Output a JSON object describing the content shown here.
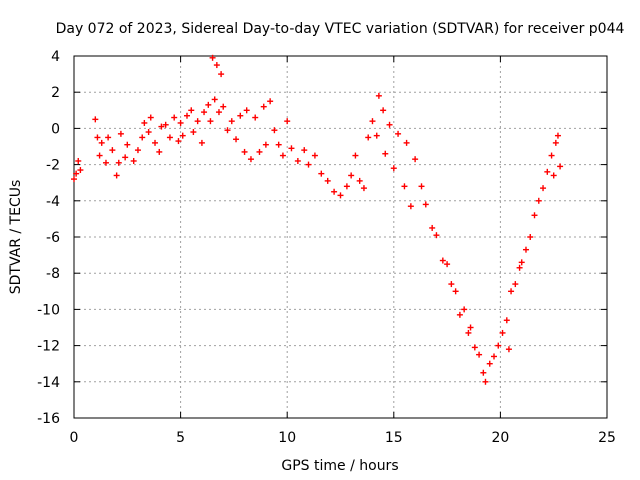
{
  "chart_data": {
    "type": "scatter",
    "title": "Day 072 of 2023, Sidereal Day-to-day VTEC variation (SDTVAR) for receiver p044",
    "xlabel": "GPS time / hours",
    "ylabel": "SDTVAR / TECUs",
    "xlim": [
      0,
      25
    ],
    "ylim": [
      -16,
      4
    ],
    "xticks": [
      "0",
      "5",
      "10",
      "15",
      "20",
      "25"
    ],
    "yticks": [
      "4",
      "2",
      "0",
      "-2",
      "-4",
      "-6",
      "-8",
      "-10",
      "-12",
      "-14",
      "-16"
    ],
    "grid": true,
    "marker": "+",
    "color": "#ff0000",
    "series": [
      {
        "name": "SDTVAR",
        "points": [
          [
            0.0,
            -2.8
          ],
          [
            0.1,
            -2.5
          ],
          [
            0.2,
            -1.8
          ],
          [
            0.3,
            -2.3
          ],
          [
            1.0,
            0.5
          ],
          [
            1.1,
            -0.5
          ],
          [
            1.2,
            -1.5
          ],
          [
            1.3,
            -0.8
          ],
          [
            1.5,
            -1.9
          ],
          [
            1.6,
            -0.5
          ],
          [
            1.8,
            -1.2
          ],
          [
            2.0,
            -2.6
          ],
          [
            2.1,
            -1.9
          ],
          [
            2.2,
            -0.3
          ],
          [
            2.4,
            -1.6
          ],
          [
            2.5,
            -0.9
          ],
          [
            2.8,
            -1.8
          ],
          [
            3.0,
            -1.2
          ],
          [
            3.2,
            -0.5
          ],
          [
            3.3,
            0.3
          ],
          [
            3.5,
            -0.2
          ],
          [
            3.6,
            0.6
          ],
          [
            3.8,
            -0.8
          ],
          [
            4.0,
            -1.3
          ],
          [
            4.1,
            0.1
          ],
          [
            4.3,
            0.2
          ],
          [
            4.5,
            -0.5
          ],
          [
            4.7,
            0.6
          ],
          [
            4.9,
            -0.7
          ],
          [
            5.0,
            0.3
          ],
          [
            5.1,
            -0.4
          ],
          [
            5.3,
            0.7
          ],
          [
            5.5,
            1.0
          ],
          [
            5.6,
            -0.2
          ],
          [
            5.8,
            0.4
          ],
          [
            6.0,
            -0.8
          ],
          [
            6.1,
            0.9
          ],
          [
            6.3,
            1.3
          ],
          [
            6.4,
            0.4
          ],
          [
            6.5,
            3.9
          ],
          [
            6.6,
            1.6
          ],
          [
            6.7,
            3.5
          ],
          [
            6.8,
            0.9
          ],
          [
            6.9,
            3.0
          ],
          [
            7.0,
            1.2
          ],
          [
            7.2,
            -0.1
          ],
          [
            7.4,
            0.4
          ],
          [
            7.6,
            -0.6
          ],
          [
            7.8,
            0.7
          ],
          [
            8.0,
            -1.3
          ],
          [
            8.1,
            1.0
          ],
          [
            8.3,
            -1.7
          ],
          [
            8.5,
            0.6
          ],
          [
            8.7,
            -1.3
          ],
          [
            8.9,
            1.2
          ],
          [
            9.0,
            -0.9
          ],
          [
            9.2,
            1.5
          ],
          [
            9.4,
            -0.1
          ],
          [
            9.6,
            -0.9
          ],
          [
            9.8,
            -1.5
          ],
          [
            10.0,
            0.4
          ],
          [
            10.2,
            -1.1
          ],
          [
            10.5,
            -1.8
          ],
          [
            10.8,
            -1.2
          ],
          [
            11.0,
            -2.0
          ],
          [
            11.3,
            -1.5
          ],
          [
            11.6,
            -2.5
          ],
          [
            11.9,
            -2.9
          ],
          [
            12.2,
            -3.5
          ],
          [
            12.5,
            -3.7
          ],
          [
            12.8,
            -3.2
          ],
          [
            13.0,
            -2.6
          ],
          [
            13.2,
            -1.5
          ],
          [
            13.4,
            -2.9
          ],
          [
            13.6,
            -3.3
          ],
          [
            13.8,
            -0.5
          ],
          [
            14.0,
            0.4
          ],
          [
            14.2,
            -0.4
          ],
          [
            14.3,
            1.8
          ],
          [
            14.5,
            1.0
          ],
          [
            14.6,
            -1.4
          ],
          [
            14.8,
            0.2
          ],
          [
            15.0,
            -2.2
          ],
          [
            15.2,
            -0.3
          ],
          [
            15.5,
            -3.2
          ],
          [
            15.6,
            -0.8
          ],
          [
            15.8,
            -4.3
          ],
          [
            16.0,
            -1.7
          ],
          [
            16.3,
            -3.2
          ],
          [
            16.5,
            -4.2
          ],
          [
            16.8,
            -5.5
          ],
          [
            17.0,
            -5.9
          ],
          [
            17.3,
            -7.3
          ],
          [
            17.5,
            -7.5
          ],
          [
            17.7,
            -8.6
          ],
          [
            17.9,
            -9.0
          ],
          [
            18.1,
            -10.3
          ],
          [
            18.3,
            -10.0
          ],
          [
            18.5,
            -11.3
          ],
          [
            18.6,
            -11.0
          ],
          [
            18.8,
            -12.1
          ],
          [
            19.0,
            -12.5
          ],
          [
            19.2,
            -13.5
          ],
          [
            19.3,
            -14.0
          ],
          [
            19.5,
            -13.0
          ],
          [
            19.7,
            -12.6
          ],
          [
            19.9,
            -12.0
          ],
          [
            20.1,
            -11.3
          ],
          [
            20.3,
            -10.6
          ],
          [
            20.4,
            -12.2
          ],
          [
            20.5,
            -9.0
          ],
          [
            20.7,
            -8.6
          ],
          [
            20.9,
            -7.7
          ],
          [
            21.0,
            -7.4
          ],
          [
            21.2,
            -6.7
          ],
          [
            21.4,
            -6.0
          ],
          [
            21.6,
            -4.8
          ],
          [
            21.8,
            -4.0
          ],
          [
            22.0,
            -3.3
          ],
          [
            22.2,
            -2.4
          ],
          [
            22.4,
            -1.5
          ],
          [
            22.5,
            -2.6
          ],
          [
            22.6,
            -0.8
          ],
          [
            22.7,
            -0.4
          ],
          [
            22.8,
            -2.1
          ]
        ]
      }
    ]
  }
}
